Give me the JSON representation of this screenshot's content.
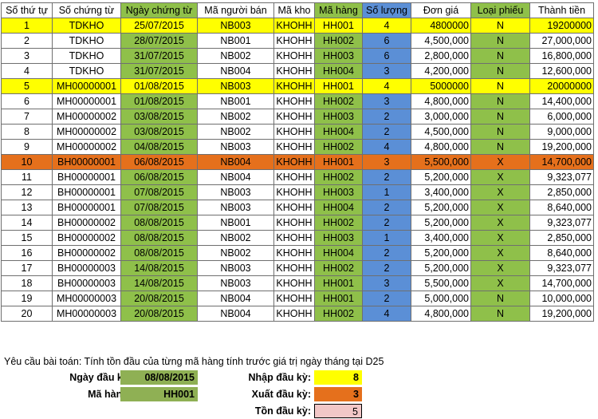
{
  "headers": [
    "Số thứ tự",
    "Số chứng từ",
    "Ngày chứng từ",
    "Mã người bán",
    "Mã kho",
    "Mã hàng",
    "Số lượng",
    "Đơn giá",
    "Loại phiếu",
    "Thành tiền"
  ],
  "rows": [
    {
      "stt": "1",
      "sct": "TDKHO",
      "ngay": "25/07/2015",
      "mnb": "NB003",
      "kho": "KHOHH",
      "mh": "HH001",
      "sl": "4",
      "dg": "4800000",
      "lp": "N",
      "tt": "19200000",
      "hl": "yellow"
    },
    {
      "stt": "2",
      "sct": "TDKHO",
      "ngay": "28/07/2015",
      "mnb": "NB001",
      "kho": "KHOHH",
      "mh": "HH002",
      "sl": "6",
      "dg": "4,500,000",
      "lp": "N",
      "tt": "27,000,000",
      "hl": ""
    },
    {
      "stt": "3",
      "sct": "TDKHO",
      "ngay": "31/07/2015",
      "mnb": "NB002",
      "kho": "KHOHH",
      "mh": "HH003",
      "sl": "6",
      "dg": "2,800,000",
      "lp": "N",
      "tt": "16,800,000",
      "hl": ""
    },
    {
      "stt": "4",
      "sct": "TDKHO",
      "ngay": "31/07/2015",
      "mnb": "NB004",
      "kho": "KHOHH",
      "mh": "HH004",
      "sl": "3",
      "dg": "4,200,000",
      "lp": "N",
      "tt": "12,600,000",
      "hl": ""
    },
    {
      "stt": "5",
      "sct": "MH00000001",
      "ngay": "01/08/2015",
      "mnb": "NB003",
      "kho": "KHOHH",
      "mh": "HH001",
      "sl": "4",
      "dg": "5000000",
      "lp": "N",
      "tt": "20000000",
      "hl": "yellow"
    },
    {
      "stt": "6",
      "sct": "MH00000001",
      "ngay": "01/08/2015",
      "mnb": "NB001",
      "kho": "KHOHH",
      "mh": "HH002",
      "sl": "3",
      "dg": "4,800,000",
      "lp": "N",
      "tt": "14,400,000",
      "hl": ""
    },
    {
      "stt": "7",
      "sct": "MH00000002",
      "ngay": "03/08/2015",
      "mnb": "NB002",
      "kho": "KHOHH",
      "mh": "HH003",
      "sl": "2",
      "dg": "3,000,000",
      "lp": "N",
      "tt": "6,000,000",
      "hl": ""
    },
    {
      "stt": "8",
      "sct": "MH00000002",
      "ngay": "03/08/2015",
      "mnb": "NB002",
      "kho": "KHOHH",
      "mh": "HH004",
      "sl": "2",
      "dg": "4,500,000",
      "lp": "N",
      "tt": "9,000,000",
      "hl": ""
    },
    {
      "stt": "9",
      "sct": "MH00000002",
      "ngay": "04/08/2015",
      "mnb": "NB003",
      "kho": "KHOHH",
      "mh": "HH002",
      "sl": "4",
      "dg": "4,800,000",
      "lp": "N",
      "tt": "19,200,000",
      "hl": ""
    },
    {
      "stt": "10",
      "sct": "BH00000001",
      "ngay": "06/08/2015",
      "mnb": "NB004",
      "kho": "KHOHH",
      "mh": "HH001",
      "sl": "3",
      "dg": "5,500,000",
      "lp": "X",
      "tt": "14,700,000",
      "hl": "orange"
    },
    {
      "stt": "11",
      "sct": "BH00000001",
      "ngay": "06/08/2015",
      "mnb": "NB004",
      "kho": "KHOHH",
      "mh": "HH002",
      "sl": "2",
      "dg": "5,200,000",
      "lp": "X",
      "tt": "9,323,077",
      "hl": ""
    },
    {
      "stt": "12",
      "sct": "BH00000001",
      "ngay": "07/08/2015",
      "mnb": "NB003",
      "kho": "KHOHH",
      "mh": "HH003",
      "sl": "1",
      "dg": "3,400,000",
      "lp": "X",
      "tt": "2,850,000",
      "hl": ""
    },
    {
      "stt": "13",
      "sct": "BH00000001",
      "ngay": "07/08/2015",
      "mnb": "NB003",
      "kho": "KHOHH",
      "mh": "HH004",
      "sl": "2",
      "dg": "5,200,000",
      "lp": "X",
      "tt": "8,640,000",
      "hl": ""
    },
    {
      "stt": "14",
      "sct": "BH00000002",
      "ngay": "08/08/2015",
      "mnb": "NB001",
      "kho": "KHOHH",
      "mh": "HH002",
      "sl": "2",
      "dg": "5,200,000",
      "lp": "X",
      "tt": "9,323,077",
      "hl": ""
    },
    {
      "stt": "15",
      "sct": "BH00000002",
      "ngay": "08/08/2015",
      "mnb": "NB002",
      "kho": "KHOHH",
      "mh": "HH003",
      "sl": "1",
      "dg": "3,400,000",
      "lp": "X",
      "tt": "2,850,000",
      "hl": ""
    },
    {
      "stt": "16",
      "sct": "BH00000002",
      "ngay": "08/08/2015",
      "mnb": "NB002",
      "kho": "KHOHH",
      "mh": "HH004",
      "sl": "2",
      "dg": "5,200,000",
      "lp": "X",
      "tt": "8,640,000",
      "hl": ""
    },
    {
      "stt": "17",
      "sct": "BH00000003",
      "ngay": "14/08/2015",
      "mnb": "NB003",
      "kho": "KHOHH",
      "mh": "HH002",
      "sl": "2",
      "dg": "5,200,000",
      "lp": "X",
      "tt": "9,323,077",
      "hl": ""
    },
    {
      "stt": "18",
      "sct": "BH00000003",
      "ngay": "14/08/2015",
      "mnb": "NB003",
      "kho": "KHOHH",
      "mh": "HH001",
      "sl": "3",
      "dg": "5,500,000",
      "lp": "X",
      "tt": "14,700,000",
      "hl": ""
    },
    {
      "stt": "19",
      "sct": "MH00000003",
      "ngay": "20/08/2015",
      "mnb": "NB004",
      "kho": "KHOHH",
      "mh": "HH001",
      "sl": "2",
      "dg": "5,000,000",
      "lp": "N",
      "tt": "10,000,000",
      "hl": ""
    },
    {
      "stt": "20",
      "sct": "MH00000003",
      "ngay": "20/08/2015",
      "mnb": "NB004",
      "kho": "KHOHH",
      "mh": "HH002",
      "sl": "4",
      "dg": "4,800,000",
      "lp": "N",
      "tt": "19,200,000",
      "hl": ""
    }
  ],
  "note": "Yêu cầu bài toán: Tính tồn đầu của từng mã hàng tính trước giá trị ngày tháng tại D25",
  "form": {
    "ngay_label": "Ngày đầu kỳ:",
    "ngay_value": "08/08/2015",
    "mahang_label": "Mã hàng:",
    "mahang_value": "HH001",
    "nhap_label": "Nhập đầu kỳ:",
    "nhap_value": "8",
    "xuat_label": "Xuất đầu kỳ:",
    "xuat_value": "3",
    "ton_label": "Tồn đầu kỳ:",
    "ton_value": "5"
  },
  "colors": {
    "green": "#8fc04a",
    "blue": "#5b8fd6",
    "yellow": "#ffff00",
    "orange": "#e5701c",
    "pink": "#f2c7c7"
  }
}
